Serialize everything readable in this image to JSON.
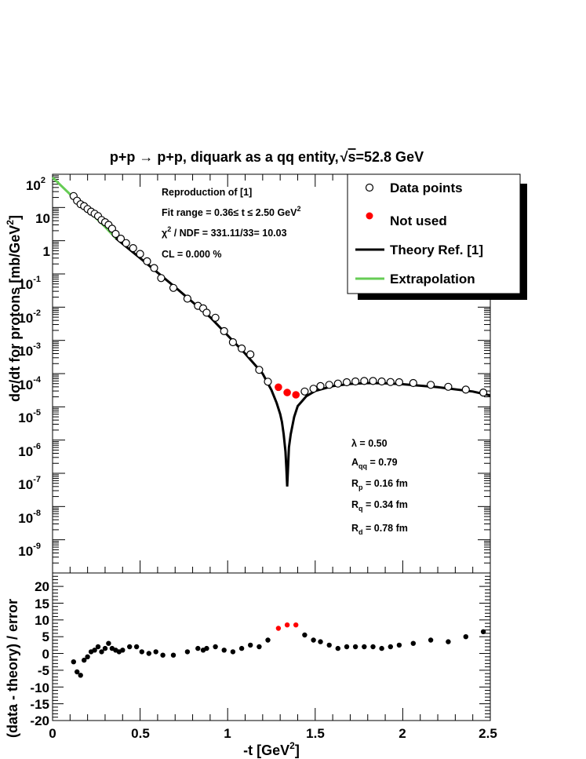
{
  "chart_data": [
    {
      "type": "scatter",
      "title": "p+p → p+p, diquark as a qq entity,√s=52.8 GeV",
      "title_parts": {
        "main": "p+p → p+p, diquark as a qq entity,",
        "sqrt_sign": "√",
        "sqrt_arg": "s",
        "rest": "=52.8 GeV"
      },
      "ylabel": "dσ/dt for protons [mb/GeV²]",
      "ylabel_parts": {
        "main": "dσ/dt for protons [mb/GeV",
        "sup": "2",
        "close": "]"
      },
      "yscale": "log",
      "xlim": [
        0,
        2.5
      ],
      "ylim": [
        1e-10,
        100
      ],
      "ytick_labels": [
        {
          "base": "10",
          "exp": "2"
        },
        {
          "base": "10",
          "exp": ""
        },
        {
          "base": "1",
          "exp": ""
        },
        {
          "base": "10",
          "exp": "-1"
        },
        {
          "base": "10",
          "exp": "-2"
        },
        {
          "base": "10",
          "exp": "-3"
        },
        {
          "base": "10",
          "exp": "-4"
        },
        {
          "base": "10",
          "exp": "-5"
        },
        {
          "base": "10",
          "exp": "-6"
        },
        {
          "base": "10",
          "exp": "-7"
        },
        {
          "base": "10",
          "exp": "-8"
        },
        {
          "base": "10",
          "exp": "-9"
        }
      ],
      "ytick_values": [
        100,
        10,
        1,
        0.1,
        0.01,
        0.001,
        0.0001,
        1e-05,
        1e-06,
        1e-07,
        1e-08,
        1e-09
      ],
      "annotations": {
        "info_title": "Reproduction of [1]",
        "fit_range": {
          "text": "Fit range = 0.36≤ t ≤ 2.50 GeV",
          "sup": "2"
        },
        "chi2": {
          "chi": "χ",
          "sup": "2",
          "text": " / NDF = 331.11/33= 10.03"
        },
        "cl": "CL = 0.000 %",
        "params": [
          {
            "sym": "λ",
            "sub": "",
            "text": " = 0.50"
          },
          {
            "sym": "A",
            "sub": "qq",
            "text": " = 0.79"
          },
          {
            "sym": "R",
            "sub": "p",
            "text": " = 0.16 fm"
          },
          {
            "sym": "R",
            "sub": "q",
            "text": " = 0.34 fm"
          },
          {
            "sym": "R",
            "sub": "d",
            "text": " = 0.78 fm"
          }
        ]
      },
      "legend": {
        "placement": "top-right",
        "entries": [
          {
            "label": "Data points",
            "marker": "open-circle",
            "color": "#000000"
          },
          {
            "label": "Not used",
            "marker": "filled-circle",
            "color": "#ff0000"
          },
          {
            "label": "Theory Ref. [1]",
            "marker": "line",
            "color": "#000000"
          },
          {
            "label": "Extrapolation",
            "marker": "line",
            "color": "#66cc55"
          }
        ]
      },
      "series": [
        {
          "name": "Data points",
          "color": "#000000",
          "points": [
            [
              0.12,
              22
            ],
            [
              0.14,
              16
            ],
            [
              0.16,
              12.5
            ],
            [
              0.18,
              11
            ],
            [
              0.2,
              9
            ],
            [
              0.22,
              7.5
            ],
            [
              0.24,
              6.5
            ],
            [
              0.26,
              5.5
            ],
            [
              0.28,
              4.2
            ],
            [
              0.3,
              3.6
            ],
            [
              0.32,
              3.0
            ],
            [
              0.34,
              2.3
            ],
            [
              0.36,
              1.6
            ],
            [
              0.39,
              1.15
            ],
            [
              0.42,
              0.85
            ],
            [
              0.46,
              0.6
            ],
            [
              0.5,
              0.4
            ],
            [
              0.54,
              0.24
            ],
            [
              0.58,
              0.15
            ],
            [
              0.62,
              0.075
            ],
            [
              0.69,
              0.038
            ],
            [
              0.77,
              0.018
            ],
            [
              0.83,
              0.011
            ],
            [
              0.86,
              0.0092
            ],
            [
              0.88,
              0.0068
            ],
            [
              0.93,
              0.0048
            ],
            [
              0.98,
              0.0019
            ],
            [
              1.03,
              0.00088
            ],
            [
              1.08,
              0.00057
            ],
            [
              1.13,
              0.00038
            ],
            [
              1.18,
              0.00013
            ],
            [
              1.23,
              5.7e-05
            ],
            [
              1.44,
              2.9e-05
            ],
            [
              1.49,
              3.5e-05
            ],
            [
              1.53,
              4.2e-05
            ],
            [
              1.58,
              4.6e-05
            ],
            [
              1.63,
              5e-05
            ],
            [
              1.68,
              5.5e-05
            ],
            [
              1.73,
              5.8e-05
            ],
            [
              1.78,
              6e-05
            ],
            [
              1.83,
              6e-05
            ],
            [
              1.88,
              5.8e-05
            ],
            [
              1.93,
              5.6e-05
            ],
            [
              1.98,
              5.5e-05
            ],
            [
              2.06,
              5.2e-05
            ],
            [
              2.16,
              4.6e-05
            ],
            [
              2.26,
              4e-05
            ],
            [
              2.36,
              3.3e-05
            ],
            [
              2.46,
              2.7e-05
            ]
          ]
        },
        {
          "name": "Not used",
          "color": "#ff0000",
          "points": [
            [
              1.29,
              3.9e-05
            ],
            [
              1.34,
              2.7e-05
            ],
            [
              1.39,
              2.3e-05
            ]
          ]
        },
        {
          "name": "Theory Ref. [1]",
          "color": "#000000",
          "x": [
            0.36,
            0.5,
            0.7,
            0.9,
            1.1,
            1.2,
            1.25,
            1.28,
            1.3,
            1.31,
            1.32,
            1.33,
            1.335,
            1.34,
            1.345,
            1.35,
            1.36,
            1.38,
            1.4,
            1.45,
            1.5,
            1.6,
            1.7,
            1.8,
            1.9,
            2.0,
            2.2,
            2.4,
            2.5
          ],
          "y": [
            1.2,
            0.3,
            0.04,
            0.005,
            0.0004,
            0.0001,
            3.2e-05,
            1.3e-05,
            6e-06,
            3.5e-06,
            1.5e-06,
            4.5e-07,
            1.5e-07,
            4e-08,
            1.5e-07,
            6e-07,
            1.5e-06,
            5e-06,
            1.05e-05,
            2.1e-05,
            3e-05,
            4.2e-05,
            4.9e-05,
            5.2e-05,
            5.1e-05,
            4.8e-05,
            3.9e-05,
            2.9e-05,
            2.2e-05
          ]
        },
        {
          "name": "Extrapolation",
          "color": "#66cc55",
          "x": [
            0.0,
            0.1,
            0.2,
            0.3,
            0.36
          ],
          "y": [
            80,
            25,
            8.5,
            2.6,
            1.2
          ]
        }
      ]
    },
    {
      "type": "scatter",
      "xlabel": "-t [GeV²]",
      "xlabel_parts": {
        "main": "-t [GeV",
        "sup": "2",
        "close": "]"
      },
      "ylabel": "(data - theory) / error",
      "xlim": [
        0,
        2.5
      ],
      "ylim": [
        -20,
        24
      ],
      "xtick_labels": [
        "0",
        "0.5",
        "1",
        "1.5",
        "2",
        "2.5"
      ],
      "ytick_labels": [
        "20",
        "15",
        "10",
        "5",
        "0",
        "-5",
        "-10",
        "-15",
        "-20"
      ],
      "series": [
        {
          "name": "Data points",
          "color": "#000000",
          "points": [
            [
              0.12,
              -2.5
            ],
            [
              0.14,
              -5.5
            ],
            [
              0.16,
              -6.5
            ],
            [
              0.18,
              -2
            ],
            [
              0.2,
              -1
            ],
            [
              0.22,
              0.5
            ],
            [
              0.24,
              1
            ],
            [
              0.26,
              2
            ],
            [
              0.28,
              0.5
            ],
            [
              0.3,
              1.5
            ],
            [
              0.32,
              3
            ],
            [
              0.34,
              1.5
            ],
            [
              0.36,
              1
            ],
            [
              0.38,
              0.5
            ],
            [
              0.4,
              1
            ],
            [
              0.44,
              2
            ],
            [
              0.48,
              2
            ],
            [
              0.51,
              0.5
            ],
            [
              0.55,
              0
            ],
            [
              0.59,
              0.5
            ],
            [
              0.63,
              -0.5
            ],
            [
              0.69,
              -0.5
            ],
            [
              0.77,
              0.5
            ],
            [
              0.83,
              1.5
            ],
            [
              0.86,
              1
            ],
            [
              0.88,
              1.5
            ],
            [
              0.93,
              2
            ],
            [
              0.98,
              1
            ],
            [
              1.03,
              0.5
            ],
            [
              1.08,
              1.5
            ],
            [
              1.13,
              2.5
            ],
            [
              1.18,
              2
            ],
            [
              1.23,
              4
            ],
            [
              1.44,
              5.5
            ],
            [
              1.49,
              4
            ],
            [
              1.53,
              3.5
            ],
            [
              1.58,
              2.5
            ],
            [
              1.63,
              1.5
            ],
            [
              1.68,
              2
            ],
            [
              1.73,
              2
            ],
            [
              1.78,
              2
            ],
            [
              1.83,
              2
            ],
            [
              1.88,
              1.5
            ],
            [
              1.93,
              2
            ],
            [
              1.98,
              2.5
            ],
            [
              2.06,
              3
            ],
            [
              2.16,
              4
            ],
            [
              2.26,
              3.5
            ],
            [
              2.36,
              5
            ],
            [
              2.46,
              6.5
            ]
          ]
        },
        {
          "name": "Not used",
          "color": "#ff0000",
          "points": [
            [
              1.29,
              7.5
            ],
            [
              1.34,
              8.5
            ],
            [
              1.39,
              8.5
            ]
          ]
        }
      ]
    }
  ]
}
